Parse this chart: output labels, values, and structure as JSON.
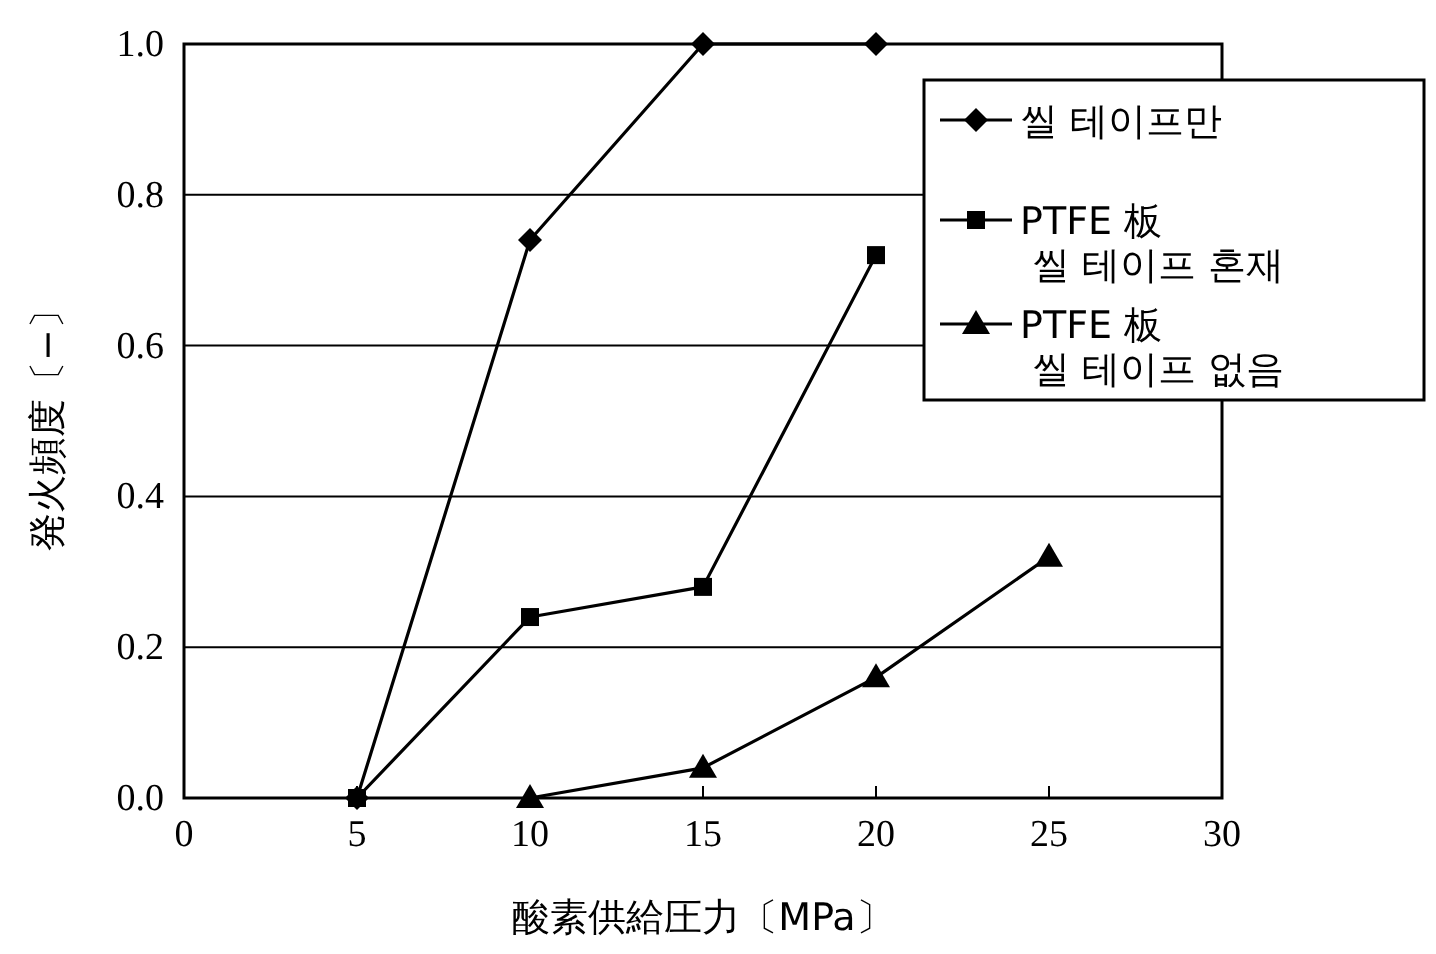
{
  "chart_data": {
    "type": "line",
    "xlabel": "酸素供給圧力〔MPa〕",
    "ylabel": "発火頻度〔−〕",
    "xlim": [
      0,
      30
    ],
    "xticks": [
      0,
      5,
      10,
      15,
      20,
      25,
      30
    ],
    "ylim": [
      0,
      1
    ],
    "yticks": [
      {
        "value": 0,
        "label": "0.0"
      },
      {
        "value": 0.2,
        "label": "0.2"
      },
      {
        "value": 0.4,
        "label": "0.4"
      },
      {
        "value": 0.6,
        "label": "0.6"
      },
      {
        "value": 0.8,
        "label": "0.8"
      },
      {
        "value": 1,
        "label": "1.0"
      }
    ],
    "grid": "y",
    "legend": "top right",
    "line_style": "solid",
    "series": [
      {
        "name": "씰 테이프만",
        "color": "#000000",
        "marker": "diamond",
        "x": [
          5,
          10,
          15,
          20
        ],
        "values": [
          0,
          0.74,
          1.0,
          1.0
        ]
      },
      {
        "name": "PTFE 板\n씰 테이프 혼재",
        "color": "#000000",
        "marker": "square",
        "x": [
          5,
          10,
          15,
          20
        ],
        "values": [
          0,
          0.24,
          0.28,
          0.72
        ]
      },
      {
        "name": "PTFE 板\n씰 테이프 없음",
        "color": "#000000",
        "marker": "triangle",
        "x": [
          10,
          15,
          20,
          25
        ],
        "values": [
          0,
          0.04,
          0.16,
          0.32
        ]
      }
    ]
  }
}
